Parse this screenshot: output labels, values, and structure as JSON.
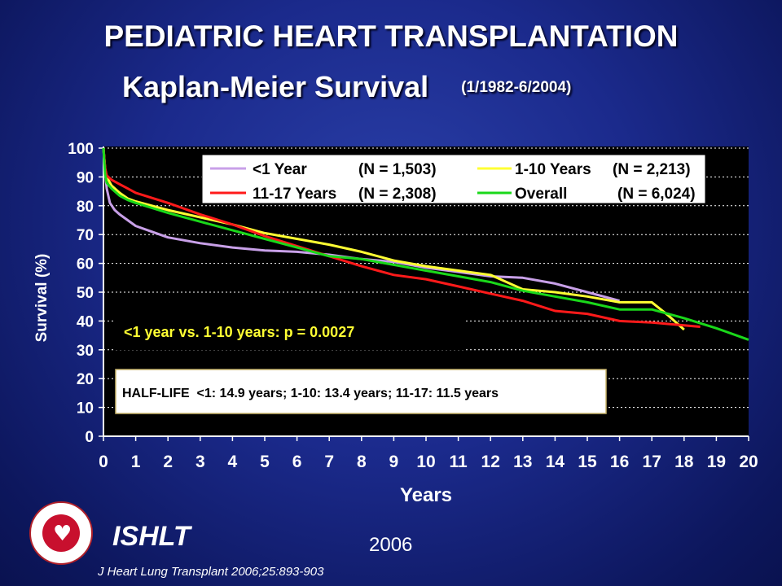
{
  "header": {
    "title_line1": "PEDIATRIC HEART TRANSPLANTATION",
    "title_line2": "Kaplan-Meier Survival",
    "title_dates": "(1/1982-6/2004)"
  },
  "footer": {
    "org": "ISHLT",
    "year": "2006",
    "citation": "J Heart Lung Transplant 2006;25:893-903",
    "logo_icon": "ishlt-seal-icon"
  },
  "colors": {
    "background": "#1b2a8c",
    "plot_area": "#000000",
    "lt1": "#c8a0e8",
    "y1_10": "#ffff33",
    "y11_17": "#ff1a1a",
    "overall": "#1ad81a"
  },
  "chart_data": {
    "type": "line",
    "xlabel": "Years",
    "ylabel": "Survival (%)",
    "xlim": [
      0,
      20
    ],
    "ylim": [
      0,
      100
    ],
    "xticks": [
      0,
      1,
      2,
      3,
      4,
      5,
      6,
      7,
      8,
      9,
      10,
      11,
      12,
      13,
      14,
      15,
      16,
      17,
      18,
      19,
      20
    ],
    "yticks": [
      0,
      10,
      20,
      30,
      40,
      50,
      60,
      70,
      80,
      90,
      100
    ],
    "grid": "horizontal dotted",
    "legend": {
      "position": "top-right",
      "entries": [
        {
          "label": "<1 Year",
          "n": "(N = 1,503)",
          "series": 0
        },
        {
          "label": "1-10 Years",
          "n": "(N = 2,213)",
          "series": 1
        },
        {
          "label": "11-17 Years",
          "n": "(N = 2,308)",
          "series": 2
        },
        {
          "label": "Overall",
          "n": "(N = 6,024)",
          "series": 3
        }
      ]
    },
    "annotation_p": "<1 year vs. 1-10 years: p = 0.0027",
    "annotation_halflife": "HALF-LIFE  <1: 14.9 years; 1-10: 13.4 years; 11-17: 11.5 years",
    "series": [
      {
        "name": "<1 Year",
        "color": "#c8a0e8",
        "x": [
          0,
          0.05,
          0.1,
          0.2,
          0.35,
          0.5,
          0.75,
          1,
          1.5,
          2,
          3,
          4,
          5,
          6,
          7,
          8,
          9,
          10,
          11,
          12,
          13,
          14,
          15,
          16
        ],
        "y": [
          100,
          92,
          86,
          81,
          78.5,
          77,
          75,
          73,
          71,
          69,
          67,
          65.5,
          64.5,
          64,
          63,
          61.5,
          60.5,
          58.5,
          57,
          55.5,
          55,
          53,
          50,
          47
        ]
      },
      {
        "name": "1-10 Years",
        "color": "#ffff33",
        "x": [
          0,
          0.05,
          0.1,
          0.25,
          0.5,
          0.75,
          1,
          2,
          3,
          4,
          5,
          6,
          7,
          8,
          9,
          10,
          11,
          12,
          13,
          14,
          15,
          16,
          17,
          17.5,
          18
        ],
        "y": [
          100,
          93,
          90,
          87,
          84.5,
          82.5,
          81.5,
          78.5,
          76,
          73.5,
          70.5,
          68.5,
          66.5,
          64,
          61,
          59,
          57.5,
          56,
          51,
          50,
          48.5,
          46.5,
          46.5,
          42,
          37
        ]
      },
      {
        "name": "11-17 Years",
        "color": "#ff1a1a",
        "x": [
          0,
          0.05,
          0.1,
          0.25,
          0.5,
          0.75,
          1,
          2,
          3,
          4,
          5,
          6,
          7,
          8,
          9,
          10,
          11,
          12,
          13,
          14,
          15,
          16,
          17,
          18,
          18.5
        ],
        "y": [
          100,
          93,
          90.5,
          89,
          87.5,
          86,
          84.5,
          81,
          77,
          73.5,
          69.5,
          66,
          62.5,
          59,
          56,
          54.5,
          52,
          49.5,
          47,
          43.5,
          42.5,
          40,
          39.5,
          38.5,
          38
        ]
      },
      {
        "name": "Overall",
        "color": "#1ad81a",
        "x": [
          0,
          0.05,
          0.1,
          0.25,
          0.5,
          0.75,
          1,
          2,
          3,
          4,
          5,
          6,
          7,
          8,
          9,
          10,
          11,
          12,
          13,
          14,
          15,
          16,
          17,
          18,
          19,
          20
        ],
        "y": [
          100,
          91,
          88,
          86,
          83.5,
          82,
          81,
          77.5,
          74.5,
          71.5,
          68.5,
          65.5,
          62.5,
          61.5,
          59.5,
          57.5,
          55.5,
          53.5,
          50.5,
          48.5,
          46.5,
          44,
          44,
          41,
          37.5,
          33.5
        ]
      }
    ]
  }
}
